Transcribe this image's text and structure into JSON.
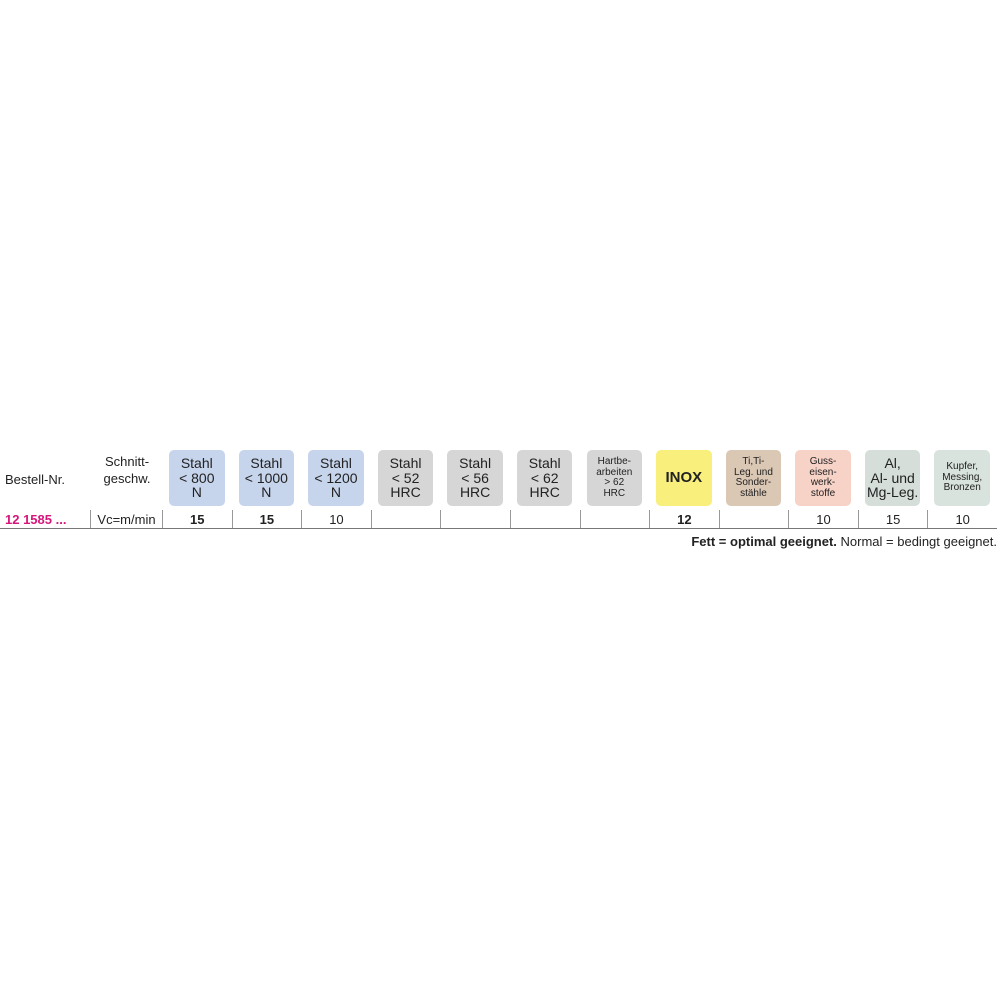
{
  "table": {
    "header": {
      "order_no": "Bestell-Nr.",
      "speed": [
        "Schnitt-",
        "geschw."
      ]
    },
    "materials": [
      {
        "lines": [
          "Stahl",
          "< 800",
          "N"
        ],
        "color": "#c6d4ec"
      },
      {
        "lines": [
          "Stahl",
          "< 1000",
          "N"
        ],
        "color": "#c6d4ec"
      },
      {
        "lines": [
          "Stahl",
          "< 1200",
          "N"
        ],
        "color": "#c6d4ec"
      },
      {
        "lines": [
          "Stahl",
          "< 52",
          "HRC"
        ],
        "color": "#d6d6d6"
      },
      {
        "lines": [
          "Stahl",
          "< 56",
          "HRC"
        ],
        "color": "#d6d6d6"
      },
      {
        "lines": [
          "Stahl",
          "< 62",
          "HRC"
        ],
        "color": "#d6d6d6"
      },
      {
        "lines": [
          "Hartbe-",
          "arbeiten",
          "> 62",
          "HRC"
        ],
        "color": "#d6d6d6"
      },
      {
        "lines": [
          "INOX"
        ],
        "color": "#f8ef7c"
      },
      {
        "lines": [
          "Ti,Ti-",
          "Leg. und",
          "Sonder-",
          "stähle"
        ],
        "color": "#dac7b4"
      },
      {
        "lines": [
          "Guss-",
          "eisen-",
          "werk-",
          "stoffe"
        ],
        "color": "#f7d2c6"
      },
      {
        "lines": [
          "Al,",
          "Al- und",
          "Mg-Leg."
        ],
        "color": "#d5ded8"
      },
      {
        "lines": [
          "Kupfer,",
          "Messing,",
          "Bronzen"
        ],
        "color": "#d9e3dd"
      }
    ],
    "rows": [
      {
        "order_no": "12 1585 ...",
        "unit": "Vc=m/min",
        "values": [
          15,
          15,
          10,
          null,
          null,
          null,
          null,
          12,
          null,
          10,
          15,
          10
        ],
        "optimal": [
          true,
          true,
          false,
          false,
          false,
          false,
          false,
          true,
          false,
          false,
          false,
          false
        ]
      }
    ],
    "legend": {
      "bold": "Fett = optimal geeignet.",
      "normal": "Normal = bedingt geeignet."
    }
  }
}
